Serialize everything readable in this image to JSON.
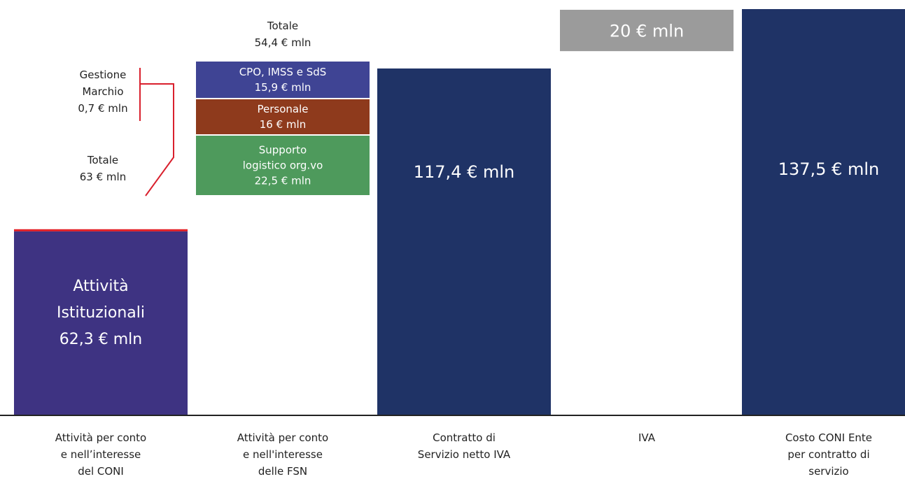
{
  "chart_data": {
    "type": "bar",
    "bars": [
      {
        "category": "Attività per conto e nell’interesse del CONI",
        "segments": [
          {
            "name": "Attività Istituzionali",
            "value": 62.3,
            "label": "Attività Istituzionali 62,3 € mln",
            "color": "#3e3382"
          },
          {
            "name": "Gestione Marchio",
            "value": 0.7,
            "label": "Gestione Marchio 0,7 € mln",
            "color": "#e31e24"
          }
        ],
        "total_label": "Totale 63 € mln"
      },
      {
        "category": "Attività per conto e nell'interesse delle FSN",
        "segments": [
          {
            "name": "Supporto logistico org.vo",
            "value": 22.5,
            "label": "Supporto logistico org.vo 22,5 € mln",
            "color": "#4e9a5c"
          },
          {
            "name": "Personale",
            "value": 16,
            "label": "Personale 16 € mln",
            "color": "#8e3a1c"
          },
          {
            "name": "CPO, IMSS e SdS",
            "value": 15.9,
            "label": "CPO, IMSS e SdS 15,9 € mln",
            "color": "#3f4494"
          }
        ],
        "total_label": "Totale 54,4 € mln"
      },
      {
        "category": "Contratto di Servizio netto IVA",
        "value": 117.4,
        "label": "117,4 € mln",
        "color": "#1f3366"
      },
      {
        "category": "IVA",
        "value": 20,
        "label": "20 € mln",
        "color": "#9b9b9b"
      },
      {
        "category": "Costo CONI Ente per contratto di servizio",
        "value": 137.5,
        "label": "137,5 € mln",
        "color": "#1f3366"
      }
    ],
    "category_labels": [
      [
        "Attività per conto",
        "e nell’interesse",
        "del CONI"
      ],
      [
        "Attività per conto",
        "e nell'interesse",
        "delle FSN"
      ],
      [
        "Contratto di",
        "Servizio netto IVA"
      ],
      [
        "IVA"
      ],
      [
        "Costo CONI Ente",
        "per contratto di",
        "servizio"
      ]
    ],
    "annotations": {
      "coni_total": [
        "Totale",
        "63 € mln"
      ],
      "marchio": [
        "Gestione",
        "Marchio",
        "0,7 € mln"
      ],
      "fsn_total": [
        "Totale",
        "54,4 € mln"
      ],
      "istituzionali": [
        "Attività",
        "Istituzionali",
        "62,3 € mln"
      ],
      "fsn_cpo": [
        "CPO, IMSS e SdS",
        "15,9 € mln"
      ],
      "fsn_personale": [
        "Personale",
        "16 € mln"
      ],
      "fsn_supporto": [
        "Supporto",
        "logistico org.vo",
        "22,5 € mln"
      ],
      "contratto": [
        "117,4 € mln"
      ],
      "iva": [
        "20 € mln"
      ],
      "costo": [
        "137,5 € mln"
      ]
    },
    "colors": {
      "baseline": "#222222",
      "annotation_line": "#d9202d",
      "text_dark": "#222222",
      "text_light": "#ffffff"
    },
    "ylim": [
      0,
      137.5
    ]
  }
}
